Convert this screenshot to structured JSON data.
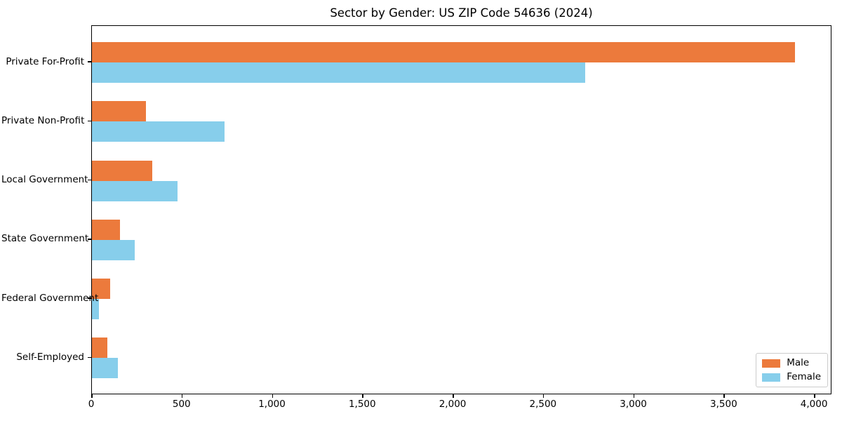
{
  "chart_data": {
    "type": "bar",
    "orientation": "horizontal",
    "title": "Sector by Gender: US ZIP Code 54636 (2024)",
    "categories": [
      "Private For-Profit",
      "Private Non-Profit",
      "Local Government",
      "State Government",
      "Federal Government",
      "Self-Employed"
    ],
    "series": [
      {
        "name": "Male",
        "color": "#ec7a3c",
        "values": [
          3890,
          300,
          335,
          155,
          100,
          85
        ]
      },
      {
        "name": "Female",
        "color": "#87ceeb",
        "values": [
          2730,
          735,
          475,
          235,
          40,
          145
        ]
      }
    ],
    "xlabel": "",
    "ylabel": "",
    "xlim": [
      0,
      4085
    ],
    "xticks": [
      0,
      500,
      1000,
      1500,
      2000,
      2500,
      3000,
      3500,
      4000
    ],
    "xtick_labels": [
      "0",
      "500",
      "1,000",
      "1,500",
      "2,000",
      "2,500",
      "3,000",
      "3,500",
      "4,000"
    ],
    "grid": false,
    "legend_position": "lower right",
    "bar_height_ratio": 0.35,
    "background_color": "#ffffff",
    "axis_color": "#000000",
    "legend_border_color": "#cccccc"
  }
}
